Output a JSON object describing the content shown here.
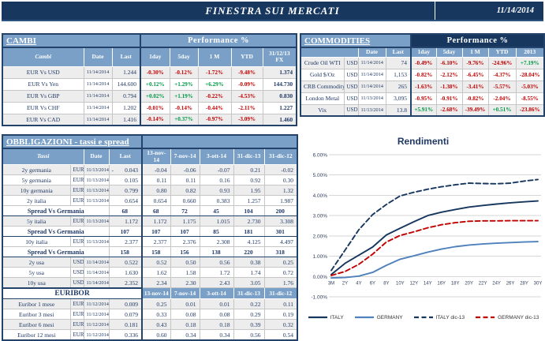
{
  "header": {
    "title": "FINESTRA SUI MERCATI",
    "date": "11/14/2014"
  },
  "colors": {
    "navy": "#17375E",
    "steel": "#7AA0C8",
    "negative": "#C00000",
    "positive": "#009845",
    "stripe": "#EDEDED"
  },
  "cambi": {
    "title": "CAMBI",
    "performance_label": "Performance  %",
    "columns": [
      "Cambi",
      "Date",
      "Last",
      "1day",
      "5day",
      "1 M",
      "YTD",
      "31/12/13 FX"
    ],
    "rows": [
      {
        "name": "EUR Vs USD",
        "date": "11/14/2014",
        "last": "1.244",
        "perf": [
          "-0.30%",
          "-0.12%",
          "-1.72%",
          "-9.48%"
        ],
        "fx": "1.374"
      },
      {
        "name": "EUR Vs Yen",
        "date": "11/14/2014",
        "last": "144.600",
        "perf": [
          "+0.12%",
          "+1.29%",
          "+6.29%",
          "-0.09%"
        ],
        "fx": "144.730"
      },
      {
        "name": "EUR Vs GBP",
        "date": "11/14/2014",
        "last": "0.794",
        "perf": [
          "+0.02%",
          "+1.19%",
          "-0.22%",
          "-4.53%"
        ],
        "fx": "0.830"
      },
      {
        "name": "EUR Vs CHF",
        "date": "11/14/2014",
        "last": "1.202",
        "perf": [
          "-0.01%",
          "-0.14%",
          "-0.44%",
          "-2.11%"
        ],
        "fx": "1.227"
      },
      {
        "name": "EUR Vs CAD",
        "date": "11/14/2014",
        "last": "1.416",
        "perf": [
          "-0.14%",
          "+0.37%",
          "-0.97%",
          "-3.09%"
        ],
        "fx": "1.460"
      }
    ]
  },
  "commodities": {
    "title": "COMMODITIES",
    "performance_label": "Performance  %",
    "columns": [
      "",
      "Date",
      "Last",
      "1day",
      "5day",
      "1 M",
      "YTD",
      "2013"
    ],
    "rows": [
      {
        "name": "Crude Oil WTI",
        "currency": "USD",
        "date": "11/14/2014",
        "last": "74",
        "perf": [
          "-0.49%",
          "-6.10%",
          "-9.76%",
          "-24.96%",
          "+7.19%"
        ]
      },
      {
        "name": "Gold $/Oz",
        "currency": "USD",
        "date": "11/14/2014",
        "last": "1,153",
        "perf": [
          "-0.82%",
          "-2.12%",
          "-6.45%",
          "-4.37%",
          "-28.04%"
        ]
      },
      {
        "name": "CRB Commodity",
        "currency": "USD",
        "date": "11/14/2014",
        "last": "265",
        "perf": [
          "-1.63%",
          "-1.38%",
          "-3.41%",
          "-5.57%",
          "-5.03%"
        ]
      },
      {
        "name": "London Metal",
        "currency": "USD",
        "date": "11/13/2014",
        "last": "3,095",
        "perf": [
          "-0.95%",
          "-0.91%",
          "-0.82%",
          "-2.04%",
          "-8.55%"
        ]
      },
      {
        "name": "Vix",
        "currency": "USD",
        "date": "11/13/2014",
        "last": "13.8",
        "perf": [
          "+5.91%",
          "-2.68%",
          "-39.49%",
          "+0.51%",
          "-23.86%"
        ]
      }
    ]
  },
  "obbligazioni": {
    "title": "OBBLIGAZIONI - tassi e spread",
    "columns": [
      "Tassi",
      "Date",
      "Last",
      "13-nov-14",
      "7-nov-14",
      "3-ott-14",
      "31-dic-13",
      "31-dic-12"
    ],
    "rows": [
      {
        "type": "rate",
        "name": "2y germania",
        "currency": "EUR",
        "date": "11/13/2014",
        "last": "-|0.043",
        "history": [
          "-0.04",
          "-0.06",
          "-0.07",
          "0.21",
          "-0.02"
        ]
      },
      {
        "type": "rate",
        "name": "5y germania",
        "currency": "EUR",
        "date": "11/13/2014",
        "last": "0.105",
        "history": [
          "0.11",
          "0.11",
          "0.16",
          "0.92",
          "0.30"
        ]
      },
      {
        "type": "rate",
        "name": "10y germania",
        "currency": "EUR",
        "date": "11/13/2014",
        "last": "0.799",
        "history": [
          "0.80",
          "0.82",
          "0.93",
          "1.95",
          "1.32"
        ]
      },
      {
        "type": "rate",
        "name": "2y italia",
        "currency": "EUR",
        "date": "11/13/2014",
        "last": "0.654",
        "history": [
          "0.654",
          "0.660",
          "0.383",
          "1.257",
          "1.987"
        ]
      },
      {
        "type": "spread",
        "name": "Spread Vs Germania",
        "last": "68",
        "history": [
          "68",
          "72",
          "45",
          "104",
          "200"
        ]
      },
      {
        "type": "rate",
        "name": "5y italia",
        "currency": "EUR",
        "date": "11/13/2014",
        "last": "1.172",
        "history": [
          "1.172",
          "1.175",
          "1.015",
          "2.730",
          "3.308"
        ]
      },
      {
        "type": "spread",
        "name": "Spread Vs Germania",
        "last": "107",
        "history": [
          "107",
          "107",
          "85",
          "181",
          "301"
        ]
      },
      {
        "type": "rate",
        "name": "10y italia",
        "currency": "EUR",
        "date": "11/13/2014",
        "last": "2.377",
        "history": [
          "2.377",
          "2.376",
          "2.308",
          "4.125",
          "4.497"
        ]
      },
      {
        "type": "spread",
        "name": "Spread Vs Germania",
        "last": "158",
        "history": [
          "158",
          "156",
          "138",
          "220",
          "318"
        ]
      },
      {
        "type": "rate",
        "name": "2y usa",
        "currency": "USD",
        "date": "11/14/2014",
        "last": "0.522",
        "history": [
          "0.52",
          "0.50",
          "0.56",
          "0.38",
          "0.25"
        ]
      },
      {
        "type": "rate",
        "name": "5y usa",
        "currency": "USD",
        "date": "11/14/2014",
        "last": "1.630",
        "history": [
          "1.62",
          "1.58",
          "1.72",
          "1.74",
          "0.72"
        ]
      },
      {
        "type": "rate",
        "name": "10y usa",
        "currency": "USD",
        "date": "11/14/2014",
        "last": "2.352",
        "history": [
          "2.34",
          "2.30",
          "2.43",
          "3.05",
          "1.76"
        ]
      }
    ],
    "euribor": {
      "title": "EURIBOR",
      "columns": [
        "13-nov-14",
        "7-nov-14",
        "3-ott-14",
        "31-dic-13",
        "31-dic-12"
      ],
      "rows": [
        {
          "name": "Euribor 1 mese",
          "currency": "EUR",
          "date": "11/12/2014",
          "last": "0.009",
          "history": [
            "0.25",
            "0.01",
            "0.01",
            "0.22",
            "0.11"
          ]
        },
        {
          "name": "Euribor 3 mesi",
          "currency": "EUR",
          "date": "11/12/2014",
          "last": "0.079",
          "history": [
            "0.33",
            "0.08",
            "0.08",
            "0.29",
            "0.19"
          ]
        },
        {
          "name": "Euribor 6 mesi",
          "currency": "EUR",
          "date": "11/12/2014",
          "last": "0.181",
          "history": [
            "0.43",
            "0.18",
            "0.18",
            "0.39",
            "0.32"
          ]
        },
        {
          "name": "Euribor 12 mesi",
          "currency": "EUR",
          "date": "11/12/2014",
          "last": "0.336",
          "history": [
            "0.60",
            "0.34",
            "0.34",
            "0.56",
            "0.54"
          ]
        }
      ]
    }
  },
  "chart_data": {
    "type": "line",
    "title": "Rendimenti",
    "x": [
      "3M",
      "2Y",
      "4Y",
      "6Y",
      "8Y",
      "10Y",
      "12Y",
      "14Y",
      "16Y",
      "18Y",
      "20Y",
      "22Y",
      "24Y",
      "26Y",
      "28Y",
      "30Y"
    ],
    "ylim": [
      -1,
      6
    ],
    "y_tick_step": 1,
    "y_tick_suffix": ".00%",
    "grid": true,
    "legend_position": "bottom",
    "series": [
      {
        "name": "ITALY",
        "style": "solid",
        "color": "#17375E",
        "values": [
          0.1,
          0.65,
          1.05,
          1.45,
          2.05,
          2.38,
          2.7,
          3.0,
          3.17,
          3.3,
          3.42,
          3.5,
          3.57,
          3.63,
          3.68,
          3.72
        ]
      },
      {
        "name": "GERMANY",
        "style": "solid",
        "color": "#4F81BD",
        "values": [
          -0.07,
          -0.05,
          0.02,
          0.2,
          0.55,
          0.85,
          1.02,
          1.2,
          1.35,
          1.47,
          1.55,
          1.6,
          1.64,
          1.67,
          1.7,
          1.72
        ]
      },
      {
        "name": "ITALY dic-13",
        "style": "dashed",
        "color": "#17375E",
        "values": [
          0.3,
          1.3,
          2.3,
          3.05,
          3.55,
          3.97,
          4.15,
          4.3,
          4.42,
          4.52,
          4.6,
          4.58,
          4.57,
          4.6,
          4.7,
          4.78
        ]
      },
      {
        "name": "GERMANY dic-13",
        "style": "dashed",
        "color": "#C00000",
        "values": [
          0.05,
          0.25,
          0.6,
          1.1,
          1.7,
          2.02,
          2.2,
          2.4,
          2.55,
          2.65,
          2.72,
          2.74,
          2.74,
          2.75,
          2.75,
          2.75
        ]
      }
    ]
  }
}
